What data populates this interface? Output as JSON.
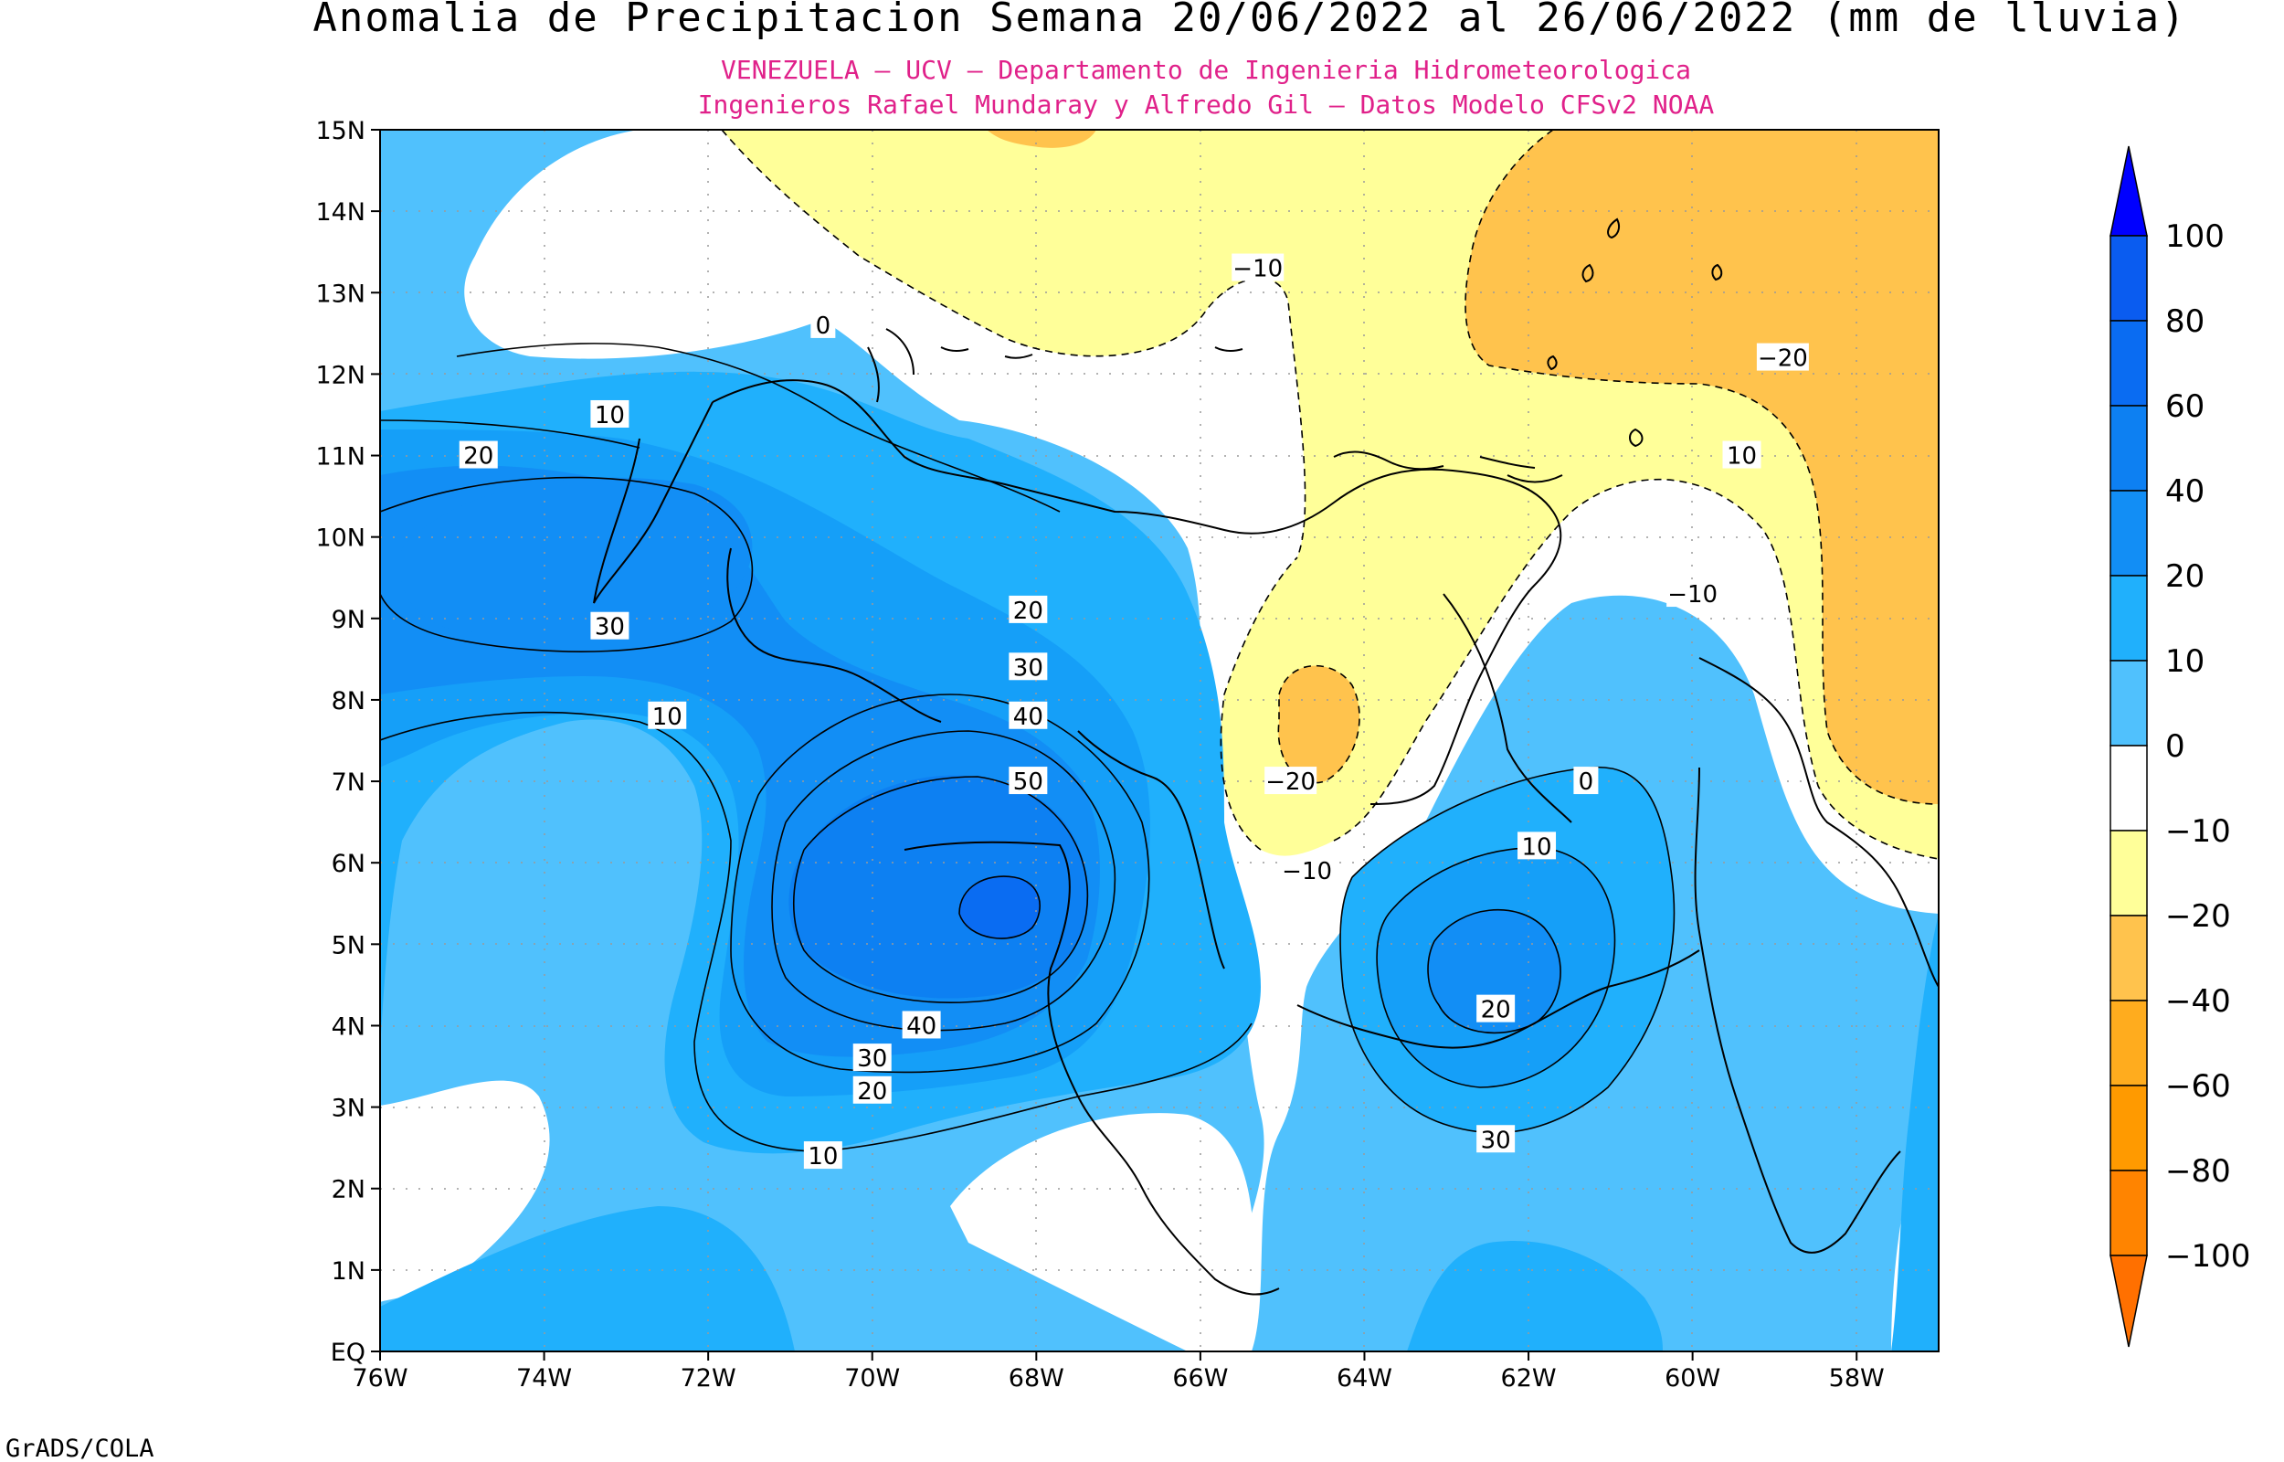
{
  "title": "Anomalia de Precipitacion Semana 20/06/2022 al 26/06/2022 (mm de lluvia)",
  "subtitle_1": "VENEZUELA — UCV — Departamento de Ingenieria Hidrometeorologica",
  "subtitle_2": "Ingenieros Rafael Mundaray y Alfredo Gil — Datos Modelo CFSv2 NOAA",
  "footer": "GrADS/COLA",
  "colors": {
    "subtitle": "#e0218a",
    "bin_0_10": "#50c1fd",
    "bin_10_20": "#20b0fc",
    "bin_20_30": "#159ff8",
    "bin_30_40": "#128ef5",
    "bin_40_60": "#0d80f2",
    "bin_neg10_0": "#ffffff",
    "bin_neg20_neg10": "#ffff99",
    "bin_neg40_neg20": "#ffc34d"
  },
  "axes": {
    "lon_range": [
      -76,
      -57
    ],
    "lat_range": [
      0,
      15
    ],
    "x_ticks": [
      "76W",
      "74W",
      "72W",
      "70W",
      "68W",
      "66W",
      "64W",
      "62W",
      "60W",
      "58W"
    ],
    "y_ticks": [
      "EQ",
      "1N",
      "2N",
      "3N",
      "4N",
      "5N",
      "6N",
      "7N",
      "8N",
      "9N",
      "10N",
      "11N",
      "12N",
      "13N",
      "14N",
      "15N"
    ],
    "grid": "dotted"
  },
  "colorbar": {
    "orientation": "vertical",
    "labels": [
      "100",
      "80",
      "60",
      "40",
      "20",
      "10",
      "0",
      "−10",
      "−20",
      "−40",
      "−60",
      "−80",
      "−100"
    ],
    "colors": [
      "#0000ff",
      "#0a5cf0",
      "#0a6cf2",
      "#0d80f2",
      "#128ef5",
      "#20b0fc",
      "#50c1fd",
      "#ffffff",
      "#ffff99",
      "#ffc34d",
      "#ffac1e",
      "#ff9a00",
      "#ff8400",
      "#ff7000"
    ]
  },
  "contour_labels": [
    "0",
    "10",
    "20",
    "30",
    "10",
    "20",
    "30",
    "40",
    "50",
    "10",
    "20",
    "30",
    "40",
    "−10",
    "−20",
    "−10",
    "−20",
    "−10",
    "0",
    "10",
    "20",
    "30",
    "10"
  ]
}
